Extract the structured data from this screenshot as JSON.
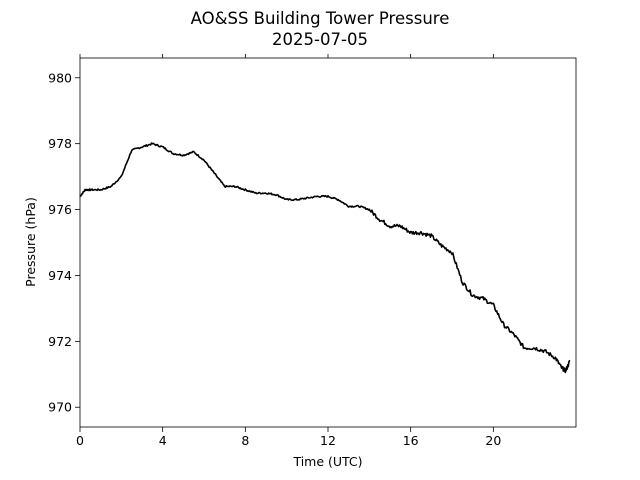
{
  "chart_data": {
    "type": "line",
    "title": "AO&SS Building Tower Pressure",
    "subtitle": "2025-07-05",
    "xlabel": "Time (UTC)",
    "ylabel": "Pressure (hPa)",
    "xlim": [
      0,
      24
    ],
    "ylim": [
      969.4,
      980.6
    ],
    "xticks": [
      0,
      4,
      8,
      12,
      16,
      20
    ],
    "xtick_labels": [
      "0",
      "4",
      "8",
      "12",
      "16",
      "20"
    ],
    "yticks": [
      970,
      972,
      974,
      976,
      978,
      980
    ],
    "ytick_labels": [
      "970",
      "972",
      "974",
      "976",
      "978",
      "980"
    ],
    "grid": false,
    "line_color": "#000000",
    "series": [
      {
        "x": [
          0,
          0.25,
          0.5,
          1,
          1.5,
          2,
          2.5,
          3,
          3.5,
          4,
          4.5,
          5,
          5.5,
          6,
          6.5,
          7,
          7.5,
          8,
          8.5,
          9,
          9.5,
          10,
          10.5,
          11,
          11.5,
          12,
          12.5,
          13,
          13.5,
          14,
          14.5,
          15,
          15.5,
          16,
          16.5,
          17,
          17.5,
          18,
          18.5,
          19,
          19.5,
          20,
          20.5,
          21,
          21.5,
          22,
          22.5,
          23,
          23.3,
          23.5,
          23.7
        ],
        "y": [
          976.4,
          976.6,
          976.6,
          976.6,
          976.7,
          977.0,
          977.8,
          977.9,
          978.0,
          977.9,
          977.7,
          977.65,
          977.75,
          977.5,
          977.1,
          976.7,
          976.7,
          976.6,
          976.5,
          976.5,
          976.45,
          976.3,
          976.3,
          976.35,
          976.4,
          976.4,
          976.3,
          976.1,
          976.1,
          976.0,
          975.7,
          975.5,
          975.5,
          975.3,
          975.3,
          975.2,
          974.9,
          974.7,
          973.8,
          973.4,
          973.3,
          973.1,
          972.5,
          972.2,
          971.8,
          971.8,
          971.7,
          971.5,
          971.2,
          971.1,
          971.4
        ]
      }
    ]
  }
}
